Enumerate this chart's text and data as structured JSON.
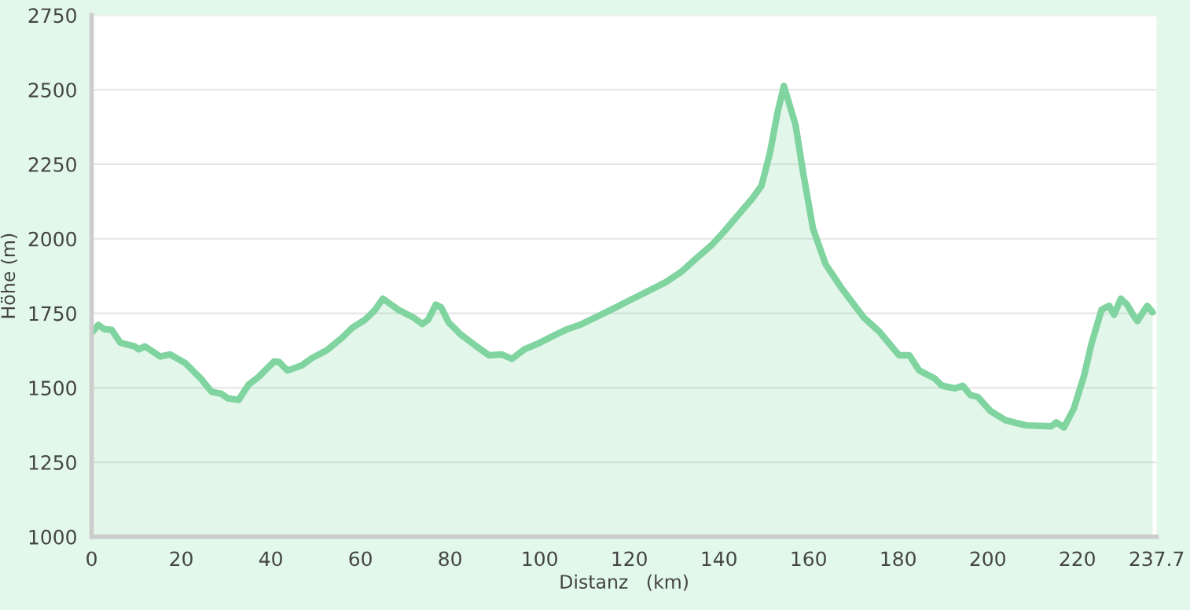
{
  "chart_data": {
    "type": "area",
    "xlabel": "Distanz   (km)",
    "ylabel": "Höhe (m)",
    "xlim": [
      0,
      237.7
    ],
    "xticks": [
      0,
      20,
      40,
      60,
      80,
      100,
      120,
      140,
      160,
      180,
      200,
      220,
      237.7
    ],
    "ylim": [
      1000,
      2750
    ],
    "yticks": [
      1000,
      1250,
      1500,
      1750,
      2000,
      2250,
      2500,
      2750
    ],
    "grid": "y",
    "series": [
      {
        "color": "#80d4a0",
        "x": [
          0,
          1.5,
          2.8,
          4.5,
          6.4,
          9.6,
          10.5,
          11.9,
          15.3,
          17.5,
          20.9,
          24.3,
          26.8,
          28.8,
          30.5,
          32.8,
          35.0,
          37.3,
          40.7,
          41.8,
          43.7,
          46.9,
          49.2,
          52.5,
          55.9,
          58.2,
          61.0,
          63.3,
          65.0,
          68.4,
          71.8,
          73.8,
          75.1,
          76.8,
          78.0,
          79.7,
          82.5,
          85.9,
          88.7,
          91.5,
          93.8,
          96.6,
          100.0,
          103.4,
          106.2,
          109.0,
          113.0,
          117.0,
          120.4,
          123.8,
          128.2,
          131.6,
          135.0,
          138.4,
          141.2,
          144.6,
          147.5,
          149.5,
          151.4,
          153.1,
          154.5,
          157.1,
          158.8,
          161.0,
          163.8,
          167.2,
          172.3,
          175.7,
          180.2,
          182.5,
          184.7,
          188.1,
          189.8,
          192.7,
          194.4,
          196.1,
          197.8,
          200.6,
          204.0,
          208.5,
          214.2,
          215.3,
          217.0,
          219.2,
          221.5,
          223.2,
          225.4,
          227.1,
          228.2,
          229.7,
          231.1,
          232.8,
          233.4,
          235.6,
          236.8
        ],
        "values": [
          1685,
          1711,
          1697,
          1694,
          1651,
          1639,
          1629,
          1639,
          1605,
          1612,
          1583,
          1532,
          1486,
          1481,
          1464,
          1459,
          1510,
          1537,
          1588,
          1587,
          1558,
          1575,
          1600,
          1626,
          1668,
          1702,
          1728,
          1762,
          1799,
          1762,
          1736,
          1714,
          1728,
          1779,
          1770,
          1719,
          1677,
          1639,
          1609,
          1612,
          1597,
          1629,
          1651,
          1677,
          1697,
          1711,
          1740,
          1770,
          1796,
          1821,
          1855,
          1889,
          1935,
          1979,
          2025,
          2085,
          2136,
          2178,
          2289,
          2425,
          2513,
          2382,
          2221,
          2034,
          1915,
          1838,
          1736,
          1690,
          1609,
          1609,
          1558,
          1532,
          1507,
          1498,
          1507,
          1476,
          1469,
          1422,
          1391,
          1374,
          1371,
          1384,
          1367,
          1430,
          1541,
          1651,
          1762,
          1775,
          1745,
          1799,
          1779,
          1736,
          1724,
          1775,
          1753
        ]
      }
    ]
  }
}
